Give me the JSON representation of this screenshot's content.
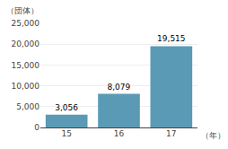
{
  "chart_data": {
    "type": "bar",
    "categories": [
      "15",
      "16",
      "17"
    ],
    "values": [
      3056,
      8079,
      19515
    ],
    "value_labels": [
      "3,056",
      "8,079",
      "19,515"
    ],
    "data_labels": true,
    "color": "#5b9ab5",
    "xlabel": "（年）",
    "ylabel": "（団体）",
    "ylim": [
      0,
      25000
    ],
    "yticks": [
      0,
      {
        "value": 5000,
        "label": "5,000"
      },
      {
        "value": 10000,
        "label": "10,000"
      },
      {
        "value": 15000,
        "label": "15,000"
      },
      {
        "value": 20000,
        "label": "20,000"
      },
      {
        "value": 25000,
        "label": "25,000"
      }
    ],
    "grid": true
  }
}
